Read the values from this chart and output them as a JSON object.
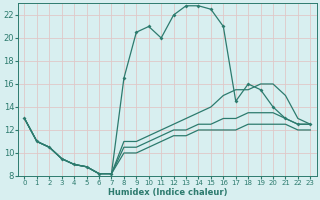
{
  "xlabel": "Humidex (Indice chaleur)",
  "bg_color": "#d8eff0",
  "grid_color": "#c8e0e0",
  "line_color": "#2d7b6e",
  "xlim": [
    -0.5,
    23.5
  ],
  "ylim": [
    8,
    23
  ],
  "xticks": [
    0,
    1,
    2,
    3,
    4,
    5,
    6,
    7,
    8,
    9,
    10,
    11,
    12,
    13,
    14,
    15,
    16,
    17,
    18,
    19,
    20,
    21,
    22,
    23
  ],
  "yticks": [
    8,
    10,
    12,
    14,
    16,
    18,
    20,
    22
  ],
  "line_spike_x": [
    0,
    1,
    2,
    3,
    4,
    5,
    6,
    7,
    8,
    9,
    10,
    11,
    12,
    13,
    14,
    15,
    16,
    17,
    18,
    19,
    20,
    21,
    22,
    23
  ],
  "line_spike_y": [
    13,
    11,
    10.5,
    9.5,
    9,
    8.8,
    8.2,
    8.2,
    16.5,
    20.5,
    21,
    20,
    22,
    22.8,
    22.8,
    22.5,
    21,
    14.5,
    16,
    15.5,
    14,
    13,
    12.5,
    12.5
  ],
  "line_upper_x": [
    0,
    1,
    2,
    3,
    4,
    5,
    6,
    7,
    8,
    9,
    10,
    11,
    12,
    13,
    14,
    15,
    16,
    17,
    18,
    19,
    20,
    21,
    22,
    23
  ],
  "line_upper_y": [
    13,
    11,
    10.5,
    9.5,
    9,
    8.8,
    8.2,
    8.2,
    11,
    11,
    11.5,
    12,
    12.5,
    13,
    13.5,
    14,
    15,
    15.5,
    15.5,
    16,
    16,
    15,
    13,
    12.5
  ],
  "line_mid_x": [
    0,
    1,
    2,
    3,
    4,
    5,
    6,
    7,
    8,
    9,
    10,
    11,
    12,
    13,
    14,
    15,
    16,
    17,
    18,
    19,
    20,
    21,
    22,
    23
  ],
  "line_mid_y": [
    13,
    11,
    10.5,
    9.5,
    9,
    8.8,
    8.2,
    8.2,
    10.5,
    10.5,
    11,
    11.5,
    12,
    12,
    12.5,
    12.5,
    13,
    13,
    13.5,
    13.5,
    13.5,
    13,
    12.5,
    12.5
  ],
  "line_lower_x": [
    0,
    1,
    2,
    3,
    4,
    5,
    6,
    7,
    8,
    9,
    10,
    11,
    12,
    13,
    14,
    15,
    16,
    17,
    18,
    19,
    20,
    21,
    22,
    23
  ],
  "line_lower_y": [
    13,
    11,
    10.5,
    9.5,
    9,
    8.8,
    8.2,
    8.2,
    10,
    10,
    10.5,
    11,
    11.5,
    11.5,
    12,
    12,
    12,
    12,
    12.5,
    12.5,
    12.5,
    12.5,
    12,
    12
  ]
}
